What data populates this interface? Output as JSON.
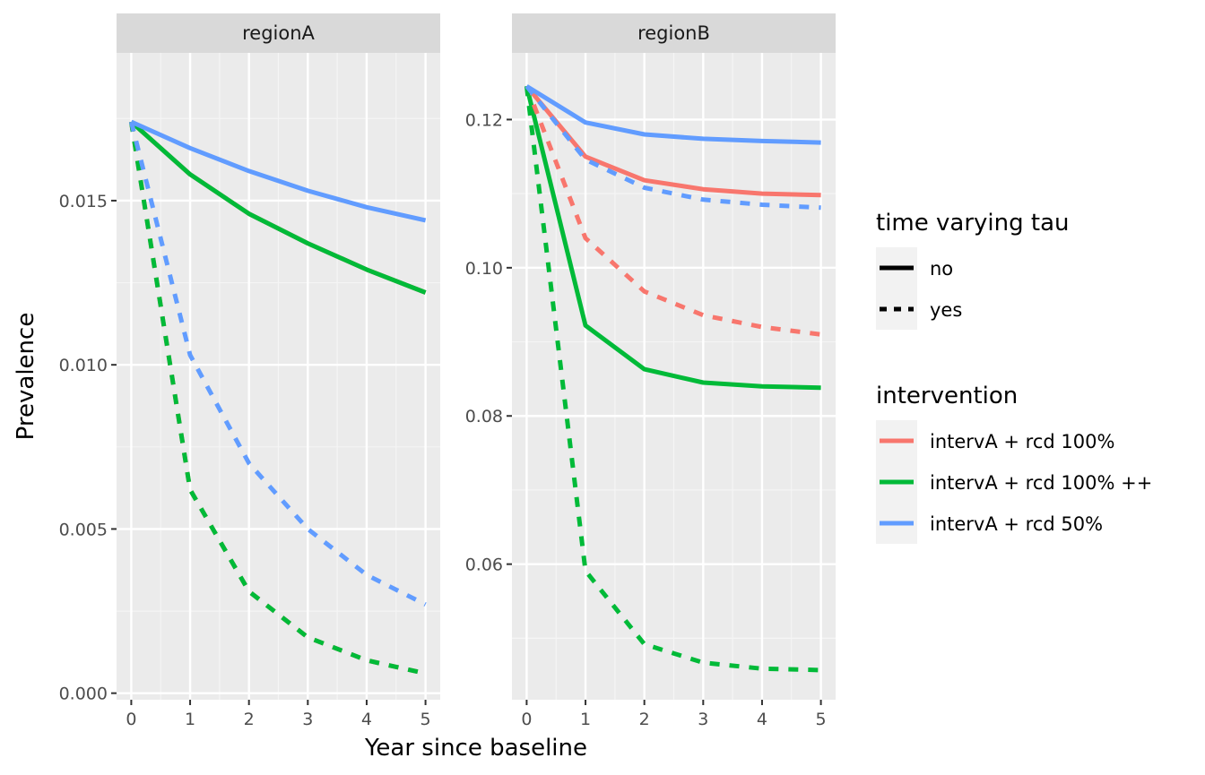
{
  "chart_data": {
    "type": "line",
    "xlabel": "Year since baseline",
    "ylabel": "Prevalence",
    "x": [
      0,
      1,
      2,
      3,
      4,
      5
    ],
    "x_ticks": [
      "0",
      "1",
      "2",
      "3",
      "4",
      "5"
    ],
    "grid": true,
    "legend_position": "right",
    "colors": {
      "intervA + rcd 100%": "#F8766D",
      "intervA + rcd 100% ++": "#00BA38",
      "intervA + rcd 50%": "#619CFF"
    },
    "legends": {
      "linetype": {
        "title": "time varying tau",
        "entries": [
          {
            "label": "no",
            "dash": "solid"
          },
          {
            "label": "yes",
            "dash": "dashed"
          }
        ]
      },
      "color": {
        "title": "intervention",
        "entries": [
          {
            "label": "intervA + rcd 100%",
            "color": "#F8766D"
          },
          {
            "label": "intervA + rcd 100% ++",
            "color": "#00BA38"
          },
          {
            "label": "intervA + rcd 50%",
            "color": "#619CFF"
          }
        ]
      }
    },
    "panels": [
      {
        "strip": "regionA",
        "ylim": [
          -0.0002,
          0.0195
        ],
        "y_ticks": [
          0.0,
          0.005,
          0.01,
          0.015
        ],
        "y_tick_labels": [
          "0.000",
          "0.005",
          "0.010",
          "0.015"
        ],
        "series": [
          {
            "intervention": "intervA + rcd 100%",
            "tau": "no",
            "values": [
              0.0174,
              0.0158,
              0.0146,
              0.0137,
              0.0129,
              0.0122
            ]
          },
          {
            "intervention": "intervA + rcd 100% ++",
            "tau": "no",
            "values": [
              0.0174,
              0.0158,
              0.0146,
              0.0137,
              0.0129,
              0.0122
            ]
          },
          {
            "intervention": "intervA + rcd 50%",
            "tau": "no",
            "values": [
              0.0174,
              0.0166,
              0.0159,
              0.0153,
              0.0148,
              0.0144
            ]
          },
          {
            "intervention": "intervA + rcd 100%",
            "tau": "yes",
            "values": [
              0.0174,
              0.0062,
              0.0031,
              0.0017,
              0.001,
              0.0006
            ]
          },
          {
            "intervention": "intervA + rcd 100% ++",
            "tau": "yes",
            "values": [
              0.0174,
              0.0062,
              0.0031,
              0.0017,
              0.001,
              0.0006
            ]
          },
          {
            "intervention": "intervA + rcd 50%",
            "tau": "yes",
            "values": [
              0.0174,
              0.0103,
              0.007,
              0.005,
              0.0036,
              0.0027
            ]
          }
        ]
      },
      {
        "strip": "regionB",
        "ylim": [
          0.0417,
          0.129
        ],
        "y_ticks": [
          0.06,
          0.08,
          0.1,
          0.12
        ],
        "y_tick_labels": [
          "0.06",
          "0.08",
          "0.10",
          "0.12"
        ],
        "series": [
          {
            "intervention": "intervA + rcd 100%",
            "tau": "no",
            "values": [
              0.1245,
              0.115,
              0.1118,
              0.1106,
              0.11,
              0.1098
            ]
          },
          {
            "intervention": "intervA + rcd 100% ++",
            "tau": "no",
            "values": [
              0.1245,
              0.0922,
              0.0863,
              0.0845,
              0.084,
              0.0838
            ]
          },
          {
            "intervention": "intervA + rcd 50%",
            "tau": "no",
            "values": [
              0.1245,
              0.1196,
              0.118,
              0.1174,
              0.1171,
              0.1169
            ]
          },
          {
            "intervention": "intervA + rcd 100%",
            "tau": "yes",
            "values": [
              0.1245,
              0.104,
              0.0968,
              0.0936,
              0.092,
              0.091
            ]
          },
          {
            "intervention": "intervA + rcd 100% ++",
            "tau": "yes",
            "values": [
              0.1245,
              0.0591,
              0.0492,
              0.0467,
              0.0459,
              0.0457
            ]
          },
          {
            "intervention": "intervA + rcd 50%",
            "tau": "yes",
            "values": [
              0.1245,
              0.1146,
              0.1108,
              0.1092,
              0.1085,
              0.1081
            ]
          }
        ]
      }
    ]
  }
}
